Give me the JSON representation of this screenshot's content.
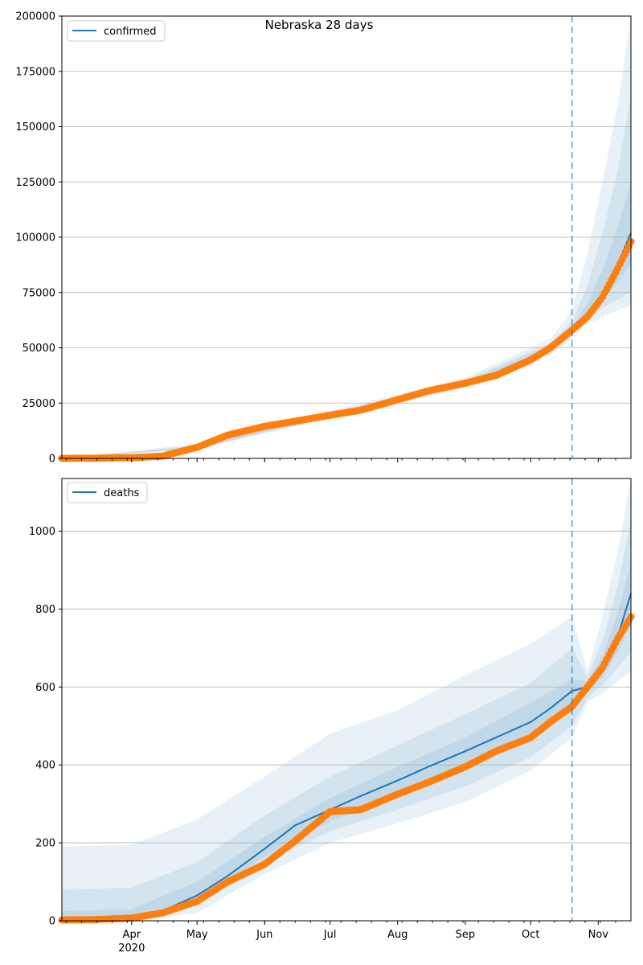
{
  "chart_data": [
    {
      "type": "line",
      "title": "Nebraska 28 days",
      "legend": [
        "confirmed"
      ],
      "legend_placement": "top-left",
      "ylim": [
        0,
        200000
      ],
      "yticks": [
        0,
        25000,
        50000,
        75000,
        100000,
        125000,
        150000,
        175000,
        200000
      ],
      "ytick_labels": [
        "0",
        "25000",
        "50000",
        "75000",
        "100000",
        "125000",
        "150000",
        "175000",
        "200000"
      ],
      "grid": true,
      "forecast_start": "2020-10-20",
      "series": [
        {
          "name": "confirmed",
          "kind": "model",
          "x": [
            "2020-02-29",
            "2020-03-15",
            "2020-04-01",
            "2020-04-15",
            "2020-05-01",
            "2020-05-15",
            "2020-06-01",
            "2020-06-15",
            "2020-07-01",
            "2020-07-15",
            "2020-08-01",
            "2020-08-15",
            "2020-09-01",
            "2020-09-15",
            "2020-10-01",
            "2020-10-10",
            "2020-10-20",
            "2020-10-27",
            "2020-11-03",
            "2020-11-10",
            "2020-11-16"
          ],
          "y": [
            0,
            100,
            300,
            1000,
            5000,
            10500,
            14500,
            16800,
            19500,
            21800,
            26500,
            30500,
            34000,
            37500,
            44500,
            50000,
            58000,
            65000,
            75000,
            88000,
            102000
          ]
        },
        {
          "name": "observed",
          "kind": "points",
          "x": [
            "2020-02-29",
            "2020-03-15",
            "2020-04-01",
            "2020-04-15",
            "2020-05-01",
            "2020-05-15",
            "2020-06-01",
            "2020-06-15",
            "2020-07-01",
            "2020-07-15",
            "2020-08-01",
            "2020-08-15",
            "2020-09-01",
            "2020-09-15",
            "2020-10-01",
            "2020-10-10",
            "2020-10-20",
            "2020-10-27",
            "2020-11-03",
            "2020-11-10",
            "2020-11-16"
          ],
          "y": [
            0,
            100,
            300,
            1000,
            5000,
            10500,
            14500,
            16800,
            19500,
            21800,
            26500,
            30500,
            34000,
            37500,
            44500,
            50000,
            58000,
            64000,
            73000,
            86000,
            98000
          ]
        }
      ],
      "bands": [
        {
          "x": [
            "2020-02-29",
            "2020-05-01",
            "2020-07-01",
            "2020-09-01",
            "2020-10-10",
            "2020-10-20",
            "2020-10-27",
            "2020-11-03",
            "2020-11-10",
            "2020-11-16"
          ],
          "lo": [
            0,
            4000,
            18000,
            32000,
            47000,
            54000,
            61000,
            64000,
            67000,
            69000
          ],
          "hi": [
            0,
            6500,
            21500,
            36500,
            54000,
            67000,
            92000,
            125000,
            160000,
            200000
          ]
        },
        {
          "x": [
            "2020-02-29",
            "2020-05-01",
            "2020-07-01",
            "2020-09-01",
            "2020-10-10",
            "2020-10-20",
            "2020-10-27",
            "2020-11-03",
            "2020-11-10",
            "2020-11-16"
          ],
          "lo": [
            0,
            4400,
            18600,
            32800,
            48500,
            56000,
            62500,
            68000,
            72000,
            75000
          ],
          "hi": [
            0,
            5800,
            20600,
            35400,
            52000,
            62000,
            78000,
            102000,
            130000,
            165000
          ]
        },
        {
          "x": [
            "2020-02-29",
            "2020-05-01",
            "2020-07-01",
            "2020-09-01",
            "2020-10-10",
            "2020-10-20",
            "2020-10-27",
            "2020-11-03",
            "2020-11-10",
            "2020-11-16"
          ],
          "lo": [
            0,
            4700,
            19100,
            33500,
            49300,
            57000,
            63500,
            71000,
            80000,
            88000
          ],
          "hi": [
            0,
            5300,
            19900,
            34500,
            50800,
            59500,
            70000,
            85000,
            105000,
            125000
          ]
        }
      ]
    },
    {
      "type": "line",
      "legend": [
        "deaths"
      ],
      "legend_placement": "top-left",
      "ylim": [
        0,
        1135
      ],
      "yticks": [
        0,
        200,
        400,
        600,
        800,
        1000
      ],
      "ytick_labels": [
        "0",
        "200",
        "400",
        "600",
        "800",
        "1000"
      ],
      "xlim": [
        "2020-02-29",
        "2020-11-16"
      ],
      "xticks": [
        "2020-04-01",
        "2020-05-01",
        "2020-06-01",
        "2020-07-01",
        "2020-08-01",
        "2020-09-01",
        "2020-10-01",
        "2020-11-01"
      ],
      "xtick_labels": [
        "Apr",
        "May",
        "Jun",
        "Jul",
        "Aug",
        "Sep",
        "Oct",
        "Nov"
      ],
      "xtick_sublabel": "2020",
      "grid": true,
      "forecast_start": "2020-10-20",
      "series": [
        {
          "name": "deaths",
          "kind": "model",
          "x": [
            "2020-02-29",
            "2020-03-15",
            "2020-04-01",
            "2020-04-15",
            "2020-05-01",
            "2020-05-15",
            "2020-06-01",
            "2020-06-15",
            "2020-07-01",
            "2020-07-15",
            "2020-08-01",
            "2020-08-15",
            "2020-09-01",
            "2020-09-15",
            "2020-10-01",
            "2020-10-10",
            "2020-10-20",
            "2020-10-27",
            "2020-11-03",
            "2020-11-10",
            "2020-11-16"
          ],
          "y": [
            2,
            5,
            10,
            25,
            65,
            115,
            185,
            245,
            285,
            320,
            360,
            395,
            435,
            470,
            510,
            545,
            590,
            600,
            650,
            730,
            840
          ]
        },
        {
          "name": "observed",
          "kind": "points",
          "x": [
            "2020-02-29",
            "2020-03-15",
            "2020-04-01",
            "2020-04-15",
            "2020-05-01",
            "2020-05-15",
            "2020-06-01",
            "2020-06-15",
            "2020-07-01",
            "2020-07-15",
            "2020-08-01",
            "2020-08-15",
            "2020-09-01",
            "2020-09-15",
            "2020-10-01",
            "2020-10-10",
            "2020-10-20",
            "2020-10-27",
            "2020-11-03",
            "2020-11-10",
            "2020-11-16"
          ],
          "y": [
            2,
            3,
            7,
            20,
            50,
            100,
            145,
            205,
            280,
            285,
            325,
            355,
            395,
            435,
            470,
            510,
            550,
            600,
            650,
            725,
            780
          ]
        }
      ],
      "bands": [
        {
          "x": [
            "2020-02-29",
            "2020-04-01",
            "2020-05-01",
            "2020-06-01",
            "2020-07-01",
            "2020-08-01",
            "2020-09-01",
            "2020-10-01",
            "2020-10-20",
            "2020-10-27",
            "2020-11-03",
            "2020-11-10",
            "2020-11-16"
          ],
          "lo": [
            0,
            0,
            20,
            120,
            200,
            250,
            305,
            385,
            470,
            560,
            585,
            615,
            640
          ],
          "hi": [
            190,
            195,
            260,
            370,
            480,
            540,
            630,
            710,
            780,
            640,
            780,
            950,
            1135
          ]
        },
        {
          "x": [
            "2020-02-29",
            "2020-04-01",
            "2020-05-01",
            "2020-06-01",
            "2020-07-01",
            "2020-08-01",
            "2020-09-01",
            "2020-10-01",
            "2020-10-20",
            "2020-10-27",
            "2020-11-03",
            "2020-11-10",
            "2020-11-16"
          ],
          "lo": [
            0,
            0,
            40,
            150,
            230,
            285,
            345,
            420,
            500,
            570,
            605,
            650,
            690
          ],
          "hi": [
            80,
            85,
            150,
            270,
            370,
            450,
            530,
            610,
            700,
            625,
            720,
            860,
            1030
          ]
        },
        {
          "x": [
            "2020-02-29",
            "2020-04-01",
            "2020-05-01",
            "2020-06-01",
            "2020-07-01",
            "2020-08-01",
            "2020-09-01",
            "2020-10-01",
            "2020-10-20",
            "2020-10-27",
            "2020-11-03",
            "2020-11-10",
            "2020-11-16"
          ],
          "lo": [
            0,
            2,
            50,
            165,
            255,
            320,
            385,
            465,
            550,
            585,
            625,
            690,
            760
          ],
          "hi": [
            25,
            30,
            100,
            215,
            315,
            395,
            470,
            560,
            620,
            615,
            680,
            790,
            920
          ]
        }
      ]
    }
  ],
  "colors": {
    "line": "#1f77b4",
    "points": "#ff7f0e",
    "band": "#1f77b4",
    "grid": "#b0b0b0"
  }
}
